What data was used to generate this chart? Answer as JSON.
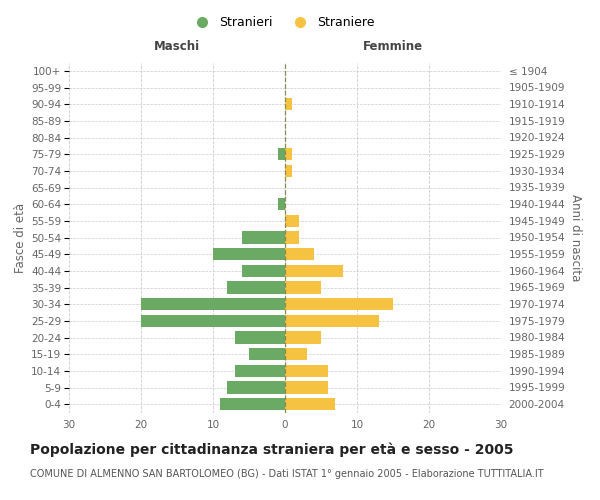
{
  "age_groups": [
    "0-4",
    "5-9",
    "10-14",
    "15-19",
    "20-24",
    "25-29",
    "30-34",
    "35-39",
    "40-44",
    "45-49",
    "50-54",
    "55-59",
    "60-64",
    "65-69",
    "70-74",
    "75-79",
    "80-84",
    "85-89",
    "90-94",
    "95-99",
    "100+"
  ],
  "birth_years": [
    "2000-2004",
    "1995-1999",
    "1990-1994",
    "1985-1989",
    "1980-1984",
    "1975-1979",
    "1970-1974",
    "1965-1969",
    "1960-1964",
    "1955-1959",
    "1950-1954",
    "1945-1949",
    "1940-1944",
    "1935-1939",
    "1930-1934",
    "1925-1929",
    "1920-1924",
    "1915-1919",
    "1910-1914",
    "1905-1909",
    "≤ 1904"
  ],
  "maschi": [
    9,
    8,
    7,
    5,
    7,
    20,
    20,
    8,
    6,
    10,
    6,
    0,
    1,
    0,
    0,
    1,
    0,
    0,
    0,
    0,
    0
  ],
  "femmine": [
    7,
    6,
    6,
    3,
    5,
    13,
    15,
    5,
    8,
    4,
    2,
    2,
    0,
    0,
    1,
    1,
    0,
    0,
    1,
    0,
    0
  ],
  "male_color": "#6aaa64",
  "female_color": "#f5c242",
  "xlim": 30,
  "title": "Popolazione per cittadinanza straniera per età e sesso - 2005",
  "subtitle": "COMUNE DI ALMENNO SAN BARTOLOMEO (BG) - Dati ISTAT 1° gennaio 2005 - Elaborazione TUTTITALIA.IT",
  "xlabel_left": "Maschi",
  "xlabel_right": "Femmine",
  "ylabel_left": "Fasce di età",
  "ylabel_right": "Anni di nascita",
  "legend_male": "Stranieri",
  "legend_female": "Straniere",
  "bg_color": "#ffffff",
  "grid_color": "#cccccc",
  "title_fontsize": 10,
  "subtitle_fontsize": 7,
  "tick_fontsize": 7.5,
  "label_fontsize": 8.5
}
